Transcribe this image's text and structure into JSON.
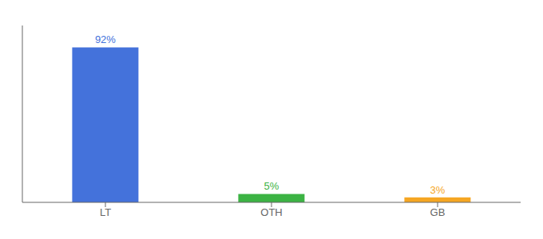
{
  "chart_data": {
    "type": "bar",
    "categories": [
      "LT",
      "OTH",
      "GB"
    ],
    "values": [
      92,
      5,
      3
    ],
    "value_labels": [
      "92%",
      "5%",
      "3%"
    ],
    "colors": [
      "#4472db",
      "#3cb344",
      "#f5a623"
    ],
    "ylim": [
      0,
      105
    ],
    "data_labels": true,
    "tick_labels": "x"
  }
}
